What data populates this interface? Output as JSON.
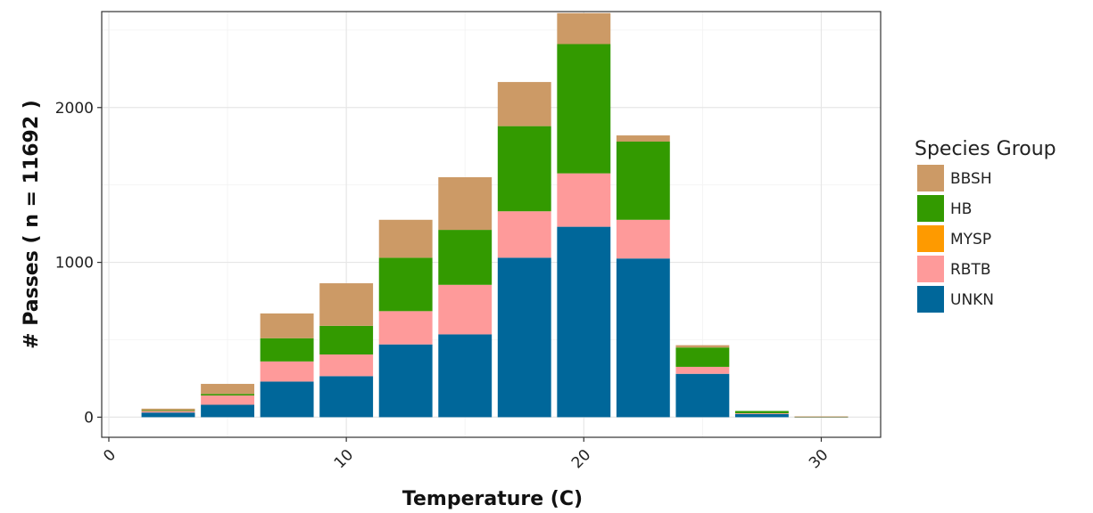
{
  "chart_data": {
    "type": "bar",
    "stacked": true,
    "xlabel": "Temperature (C)",
    "ylabel": "# Passes ( n = 11692 )",
    "xlim": [
      -0.3,
      32.5
    ],
    "ylim": [
      -130,
      2620
    ],
    "x_ticks": [
      0,
      10,
      20,
      30
    ],
    "y_ticks": [
      0,
      1000,
      2000
    ],
    "x_tick_labels": [
      "0",
      "10",
      "20",
      "30"
    ],
    "y_tick_labels": [
      "0",
      "1000",
      "2000"
    ],
    "grid": true,
    "bin_width": 2.5,
    "x": [
      2.5,
      5,
      7.5,
      10,
      12.5,
      15,
      17.5,
      20,
      22.5,
      25,
      27.5,
      30
    ],
    "legend": {
      "title": "Species Group",
      "position": "right"
    },
    "series": [
      {
        "name": "UNKN",
        "color": "#00679A",
        "values": [
          30,
          80,
          230,
          265,
          470,
          535,
          1030,
          1230,
          1025,
          280,
          20,
          2
        ]
      },
      {
        "name": "RBTB",
        "color": "#FE9A9A",
        "values": [
          10,
          60,
          130,
          140,
          215,
          320,
          300,
          345,
          250,
          45,
          5,
          1
        ]
      },
      {
        "name": "MYSP",
        "color": "#FE9A00",
        "values": [
          0,
          0,
          0,
          0,
          0,
          0,
          0,
          0,
          0,
          0,
          0,
          0
        ]
      },
      {
        "name": "HB",
        "color": "#339A00",
        "values": [
          5,
          10,
          150,
          185,
          345,
          355,
          550,
          835,
          505,
          125,
          15,
          1
        ]
      },
      {
        "name": "BBSH",
        "color": "#CC9A66",
        "values": [
          10,
          65,
          160,
          275,
          245,
          340,
          285,
          200,
          40,
          15,
          0,
          1
        ]
      }
    ],
    "legend_order": [
      "BBSH",
      "HB",
      "MYSP",
      "RBTB",
      "UNKN"
    ]
  }
}
